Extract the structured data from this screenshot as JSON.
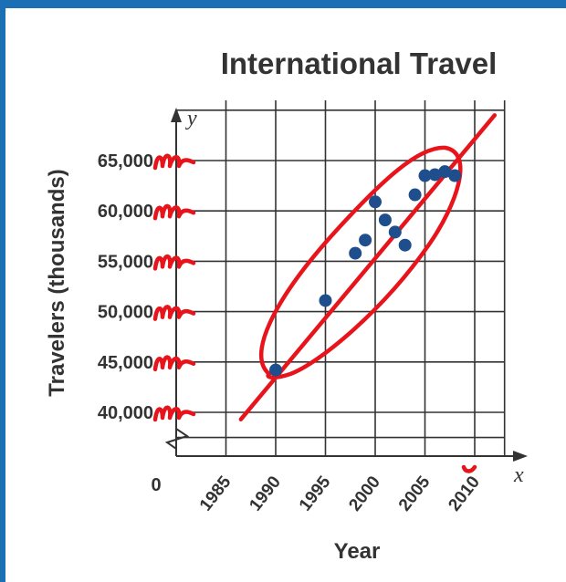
{
  "chart_data": {
    "type": "scatter",
    "title": "International Travel",
    "xlabel": "Year",
    "ylabel": "Travelers (thousands)",
    "x_var": "x",
    "y_var": "y",
    "origin_label": "0",
    "x_ticks": [
      "1985",
      "1990",
      "1995",
      "2000",
      "2005",
      "2010"
    ],
    "y_ticks": [
      "40,000",
      "45,000",
      "50,000",
      "55,000",
      "60,000",
      "65,000"
    ],
    "xlim": [
      1980,
      2013
    ],
    "ylim": [
      35000,
      67000
    ],
    "grid": true,
    "points": [
      {
        "x": 1990,
        "y": 44200
      },
      {
        "x": 1995,
        "y": 51100
      },
      {
        "x": 1998,
        "y": 55800
      },
      {
        "x": 1999,
        "y": 57100
      },
      {
        "x": 2000,
        "y": 60900
      },
      {
        "x": 2001,
        "y": 59100
      },
      {
        "x": 2002,
        "y": 57900
      },
      {
        "x": 2003,
        "y": 56600
      },
      {
        "x": 2004,
        "y": 61600
      },
      {
        "x": 2005,
        "y": 63500
      },
      {
        "x": 2006,
        "y": 63600
      },
      {
        "x": 2007,
        "y": 63900
      },
      {
        "x": 2008,
        "y": 63500
      }
    ],
    "point_color": "#1f4e8c",
    "annotation_color": "#e8141c",
    "line_of_fit": {
      "x1": 1986.5,
      "y1": 39300,
      "x2": 2012,
      "y2": 69500
    }
  }
}
